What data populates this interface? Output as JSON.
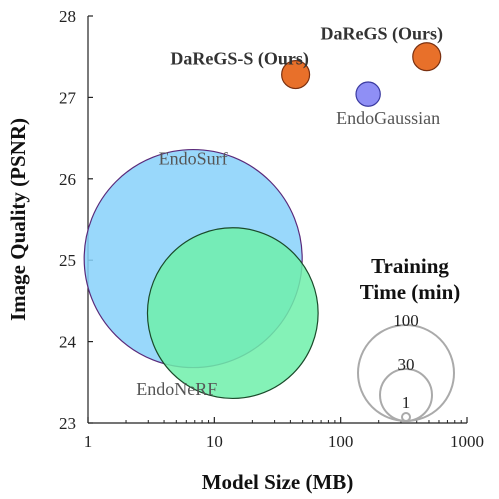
{
  "chart_data": {
    "type": "scatter",
    "xscale": "log",
    "xlim": [
      1,
      1000
    ],
    "ylim": [
      23,
      28
    ],
    "xticks": [
      "1",
      "10",
      "100",
      "1000"
    ],
    "yticks": [
      "23",
      "24",
      "25",
      "26",
      "27",
      "28"
    ],
    "xlabel": "Model Size (MB)",
    "ylabel": "Image Quality (PSNR)",
    "grid": false,
    "points": [
      {
        "name": "EndoSurf",
        "x": 6.8,
        "y": 25.02,
        "time": 100,
        "color": "#87d1fa",
        "stroke": "#5a2a7a",
        "bold": false
      },
      {
        "name": "EndoNeRF",
        "x": 14,
        "y": 24.35,
        "time": 60,
        "color": "#6ef0aa",
        "stroke": "#1a4a2a",
        "bold": false
      },
      {
        "name": "EndoGaussian",
        "x": 165,
        "y": 27.04,
        "time": 0.6,
        "color": "#8f8ff5",
        "stroke": "#3a3aa0",
        "bold": false
      },
      {
        "name": "DaReGS-S (Ours)",
        "x": 44,
        "y": 27.28,
        "time": 0.9,
        "color": "#e8702a",
        "stroke": "#7a3010",
        "bold": true
      },
      {
        "name": "DaReGS (Ours)",
        "x": 480,
        "y": 27.5,
        "time": 0.9,
        "color": "#e8702a",
        "stroke": "#7a3010",
        "bold": true
      }
    ],
    "legend": {
      "title_line1": "Training",
      "title_line2": "Time (min)",
      "values": [
        "100",
        "30",
        "1"
      ],
      "placement": "bottom-right"
    }
  }
}
